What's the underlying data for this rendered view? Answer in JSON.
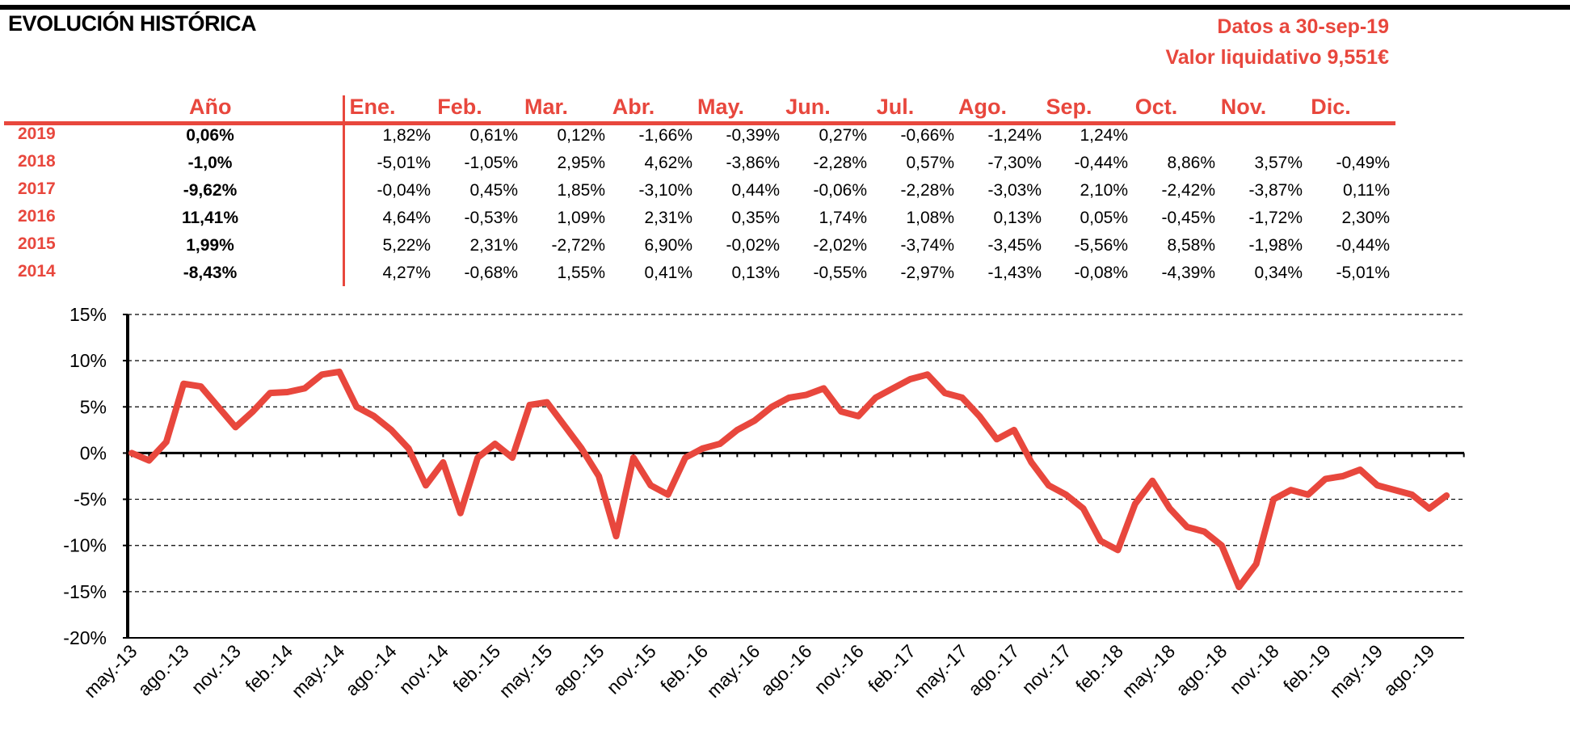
{
  "header": {
    "title": "EVOLUCIÓN HISTÓRICA",
    "date_line": "Datos a 30-sep-19",
    "nav_line": "Valor liquidativo 9,551€"
  },
  "colors": {
    "accent": "#e8473d",
    "axis": "#000000"
  },
  "table": {
    "year_header": "Año",
    "month_headers": [
      "Ene.",
      "Feb.",
      "Mar.",
      "Abr.",
      "May.",
      "Jun.",
      "Jul.",
      "Ago.",
      "Sep.",
      "Oct.",
      "Nov.",
      "Dic."
    ],
    "rows": [
      {
        "year": "2019",
        "annual": "0,06%",
        "months": [
          "1,82%",
          "0,61%",
          "0,12%",
          "-1,66%",
          "-0,39%",
          "0,27%",
          "-0,66%",
          "-1,24%",
          "1,24%",
          "",
          "",
          ""
        ]
      },
      {
        "year": "2018",
        "annual": "-1,0%",
        "months": [
          "-5,01%",
          "-1,05%",
          "2,95%",
          "4,62%",
          "-3,86%",
          "-2,28%",
          "0,57%",
          "-7,30%",
          "-0,44%",
          "8,86%",
          "3,57%",
          "-0,49%"
        ]
      },
      {
        "year": "2017",
        "annual": "-9,62%",
        "months": [
          "-0,04%",
          "0,45%",
          "1,85%",
          "-3,10%",
          "0,44%",
          "-0,06%",
          "-2,28%",
          "-3,03%",
          "2,10%",
          "-2,42%",
          "-3,87%",
          "0,11%"
        ]
      },
      {
        "year": "2016",
        "annual": "11,41%",
        "months": [
          "4,64%",
          "-0,53%",
          "1,09%",
          "2,31%",
          "0,35%",
          "1,74%",
          "1,08%",
          "0,13%",
          "0,05%",
          "-0,45%",
          "-1,72%",
          "2,30%"
        ]
      },
      {
        "year": "2015",
        "annual": "1,99%",
        "months": [
          "5,22%",
          "2,31%",
          "-2,72%",
          "6,90%",
          "-0,02%",
          "-2,02%",
          "-3,74%",
          "-3,45%",
          "-5,56%",
          "8,58%",
          "-1,98%",
          "-0,44%"
        ]
      },
      {
        "year": "2014",
        "annual": "-8,43%",
        "months": [
          "4,27%",
          "-0,68%",
          "1,55%",
          "0,41%",
          "0,13%",
          "-0,55%",
          "-2,97%",
          "-1,43%",
          "-0,08%",
          "-4,39%",
          "0,34%",
          "-5,01%"
        ]
      }
    ]
  },
  "chart_data": {
    "type": "line",
    "ylim": [
      -20,
      15
    ],
    "y_ticks": [
      15,
      10,
      5,
      0,
      -5,
      -10,
      -15,
      -20
    ],
    "y_tick_labels": [
      "15%",
      "10%",
      "5%",
      "0%",
      "-5%",
      "-10%",
      "-15%",
      "-20%"
    ],
    "x_tick_labels": [
      "may.-13",
      "ago.-13",
      "nov.-13",
      "feb.-14",
      "may.-14",
      "ago.-14",
      "nov.-14",
      "feb.-15",
      "may.-15",
      "ago.-15",
      "nov.-15",
      "feb.-16",
      "may.-16",
      "ago.-16",
      "nov.-16",
      "feb.-17",
      "may.-17",
      "ago.-17",
      "nov.-17",
      "feb.-18",
      "may.-18",
      "ago.-18",
      "nov.-18",
      "feb.-19",
      "may.-19",
      "ago.-19"
    ],
    "grid": "horizontal dashed",
    "series": [
      {
        "color": "#e8473d",
        "x": [
          "may.-13",
          "jun.-13",
          "jul.-13",
          "ago.-13",
          "sep.-13",
          "oct.-13",
          "nov.-13",
          "dic.-13",
          "ene.-14",
          "feb.-14",
          "mar.-14",
          "abr.-14",
          "may.-14",
          "jun.-14",
          "jul.-14",
          "ago.-14",
          "sep.-14",
          "oct.-14",
          "nov.-14",
          "dic.-14",
          "ene.-15",
          "feb.-15",
          "mar.-15",
          "abr.-15",
          "may.-15",
          "jun.-15",
          "jul.-15",
          "ago.-15",
          "sep.-15",
          "oct.-15",
          "nov.-15",
          "dic.-15",
          "ene.-16",
          "feb.-16",
          "mar.-16",
          "abr.-16",
          "may.-16",
          "jun.-16",
          "jul.-16",
          "ago.-16",
          "sep.-16",
          "oct.-16",
          "nov.-16",
          "dic.-16",
          "ene.-17",
          "feb.-17",
          "mar.-17",
          "abr.-17",
          "may.-17",
          "jun.-17",
          "jul.-17",
          "ago.-17",
          "sep.-17",
          "oct.-17",
          "nov.-17",
          "dic.-17",
          "ene.-18",
          "feb.-18",
          "mar.-18",
          "abr.-18",
          "may.-18",
          "jun.-18",
          "jul.-18",
          "ago.-18",
          "sep.-18",
          "oct.-18",
          "nov.-18",
          "dic.-18",
          "ene.-19",
          "feb.-19",
          "mar.-19",
          "abr.-19",
          "may.-19",
          "jun.-19",
          "jul.-19",
          "ago.-19",
          "sep.-19"
        ],
        "y": [
          0.0,
          -0.8,
          1.2,
          7.5,
          7.2,
          5.0,
          2.8,
          4.5,
          6.5,
          6.6,
          7.0,
          8.5,
          8.8,
          5.0,
          4.0,
          2.5,
          0.5,
          -3.5,
          -1.0,
          -6.5,
          -0.5,
          1.0,
          -0.5,
          5.2,
          5.5,
          3.0,
          0.5,
          -2.5,
          -9.0,
          -0.5,
          -3.5,
          -4.5,
          -0.5,
          0.5,
          1.0,
          2.5,
          3.5,
          5.0,
          6.0,
          6.3,
          7.0,
          4.5,
          4.0,
          6.0,
          7.0,
          8.0,
          8.5,
          6.5,
          6.0,
          4.0,
          1.5,
          2.5,
          -1.0,
          -3.5,
          -4.5,
          -6.0,
          -9.5,
          -10.5,
          -5.5,
          -3.0,
          -6.0,
          -8.0,
          -8.5,
          -10.0,
          -14.5,
          -12.0,
          -5.0,
          -4.0,
          -4.5,
          -2.8,
          -2.5,
          -1.8,
          -3.5,
          -4.0,
          -4.5,
          -6.0,
          -4.6
        ]
      }
    ]
  }
}
